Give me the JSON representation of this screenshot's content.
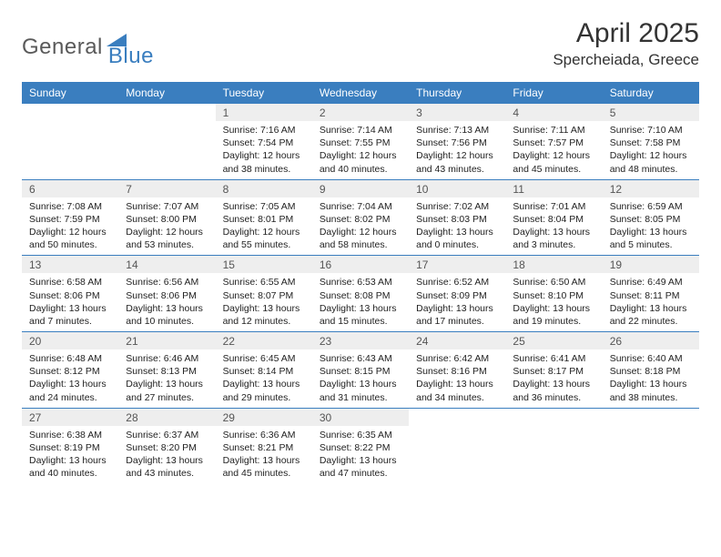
{
  "header": {
    "logo_general": "General",
    "logo_blue": "Blue",
    "month_title": "April 2025",
    "location": "Spercheiada, Greece"
  },
  "weekdays": [
    "Sunday",
    "Monday",
    "Tuesday",
    "Wednesday",
    "Thursday",
    "Friday",
    "Saturday"
  ],
  "colors": {
    "header_bg": "#3a7ebf",
    "header_text": "#ffffff",
    "daynum_bg": "#eeeeee",
    "border": "#3a7ebf"
  },
  "weeks": [
    [
      null,
      null,
      {
        "n": "1",
        "sr": "7:16 AM",
        "ss": "7:54 PM",
        "dl": "12 hours and 38 minutes."
      },
      {
        "n": "2",
        "sr": "7:14 AM",
        "ss": "7:55 PM",
        "dl": "12 hours and 40 minutes."
      },
      {
        "n": "3",
        "sr": "7:13 AM",
        "ss": "7:56 PM",
        "dl": "12 hours and 43 minutes."
      },
      {
        "n": "4",
        "sr": "7:11 AM",
        "ss": "7:57 PM",
        "dl": "12 hours and 45 minutes."
      },
      {
        "n": "5",
        "sr": "7:10 AM",
        "ss": "7:58 PM",
        "dl": "12 hours and 48 minutes."
      }
    ],
    [
      {
        "n": "6",
        "sr": "7:08 AM",
        "ss": "7:59 PM",
        "dl": "12 hours and 50 minutes."
      },
      {
        "n": "7",
        "sr": "7:07 AM",
        "ss": "8:00 PM",
        "dl": "12 hours and 53 minutes."
      },
      {
        "n": "8",
        "sr": "7:05 AM",
        "ss": "8:01 PM",
        "dl": "12 hours and 55 minutes."
      },
      {
        "n": "9",
        "sr": "7:04 AM",
        "ss": "8:02 PM",
        "dl": "12 hours and 58 minutes."
      },
      {
        "n": "10",
        "sr": "7:02 AM",
        "ss": "8:03 PM",
        "dl": "13 hours and 0 minutes."
      },
      {
        "n": "11",
        "sr": "7:01 AM",
        "ss": "8:04 PM",
        "dl": "13 hours and 3 minutes."
      },
      {
        "n": "12",
        "sr": "6:59 AM",
        "ss": "8:05 PM",
        "dl": "13 hours and 5 minutes."
      }
    ],
    [
      {
        "n": "13",
        "sr": "6:58 AM",
        "ss": "8:06 PM",
        "dl": "13 hours and 7 minutes."
      },
      {
        "n": "14",
        "sr": "6:56 AM",
        "ss": "8:06 PM",
        "dl": "13 hours and 10 minutes."
      },
      {
        "n": "15",
        "sr": "6:55 AM",
        "ss": "8:07 PM",
        "dl": "13 hours and 12 minutes."
      },
      {
        "n": "16",
        "sr": "6:53 AM",
        "ss": "8:08 PM",
        "dl": "13 hours and 15 minutes."
      },
      {
        "n": "17",
        "sr": "6:52 AM",
        "ss": "8:09 PM",
        "dl": "13 hours and 17 minutes."
      },
      {
        "n": "18",
        "sr": "6:50 AM",
        "ss": "8:10 PM",
        "dl": "13 hours and 19 minutes."
      },
      {
        "n": "19",
        "sr": "6:49 AM",
        "ss": "8:11 PM",
        "dl": "13 hours and 22 minutes."
      }
    ],
    [
      {
        "n": "20",
        "sr": "6:48 AM",
        "ss": "8:12 PM",
        "dl": "13 hours and 24 minutes."
      },
      {
        "n": "21",
        "sr": "6:46 AM",
        "ss": "8:13 PM",
        "dl": "13 hours and 27 minutes."
      },
      {
        "n": "22",
        "sr": "6:45 AM",
        "ss": "8:14 PM",
        "dl": "13 hours and 29 minutes."
      },
      {
        "n": "23",
        "sr": "6:43 AM",
        "ss": "8:15 PM",
        "dl": "13 hours and 31 minutes."
      },
      {
        "n": "24",
        "sr": "6:42 AM",
        "ss": "8:16 PM",
        "dl": "13 hours and 34 minutes."
      },
      {
        "n": "25",
        "sr": "6:41 AM",
        "ss": "8:17 PM",
        "dl": "13 hours and 36 minutes."
      },
      {
        "n": "26",
        "sr": "6:40 AM",
        "ss": "8:18 PM",
        "dl": "13 hours and 38 minutes."
      }
    ],
    [
      {
        "n": "27",
        "sr": "6:38 AM",
        "ss": "8:19 PM",
        "dl": "13 hours and 40 minutes."
      },
      {
        "n": "28",
        "sr": "6:37 AM",
        "ss": "8:20 PM",
        "dl": "13 hours and 43 minutes."
      },
      {
        "n": "29",
        "sr": "6:36 AM",
        "ss": "8:21 PM",
        "dl": "13 hours and 45 minutes."
      },
      {
        "n": "30",
        "sr": "6:35 AM",
        "ss": "8:22 PM",
        "dl": "13 hours and 47 minutes."
      },
      null,
      null,
      null
    ]
  ],
  "labels": {
    "sunrise": "Sunrise:",
    "sunset": "Sunset:",
    "daylight": "Daylight:"
  }
}
